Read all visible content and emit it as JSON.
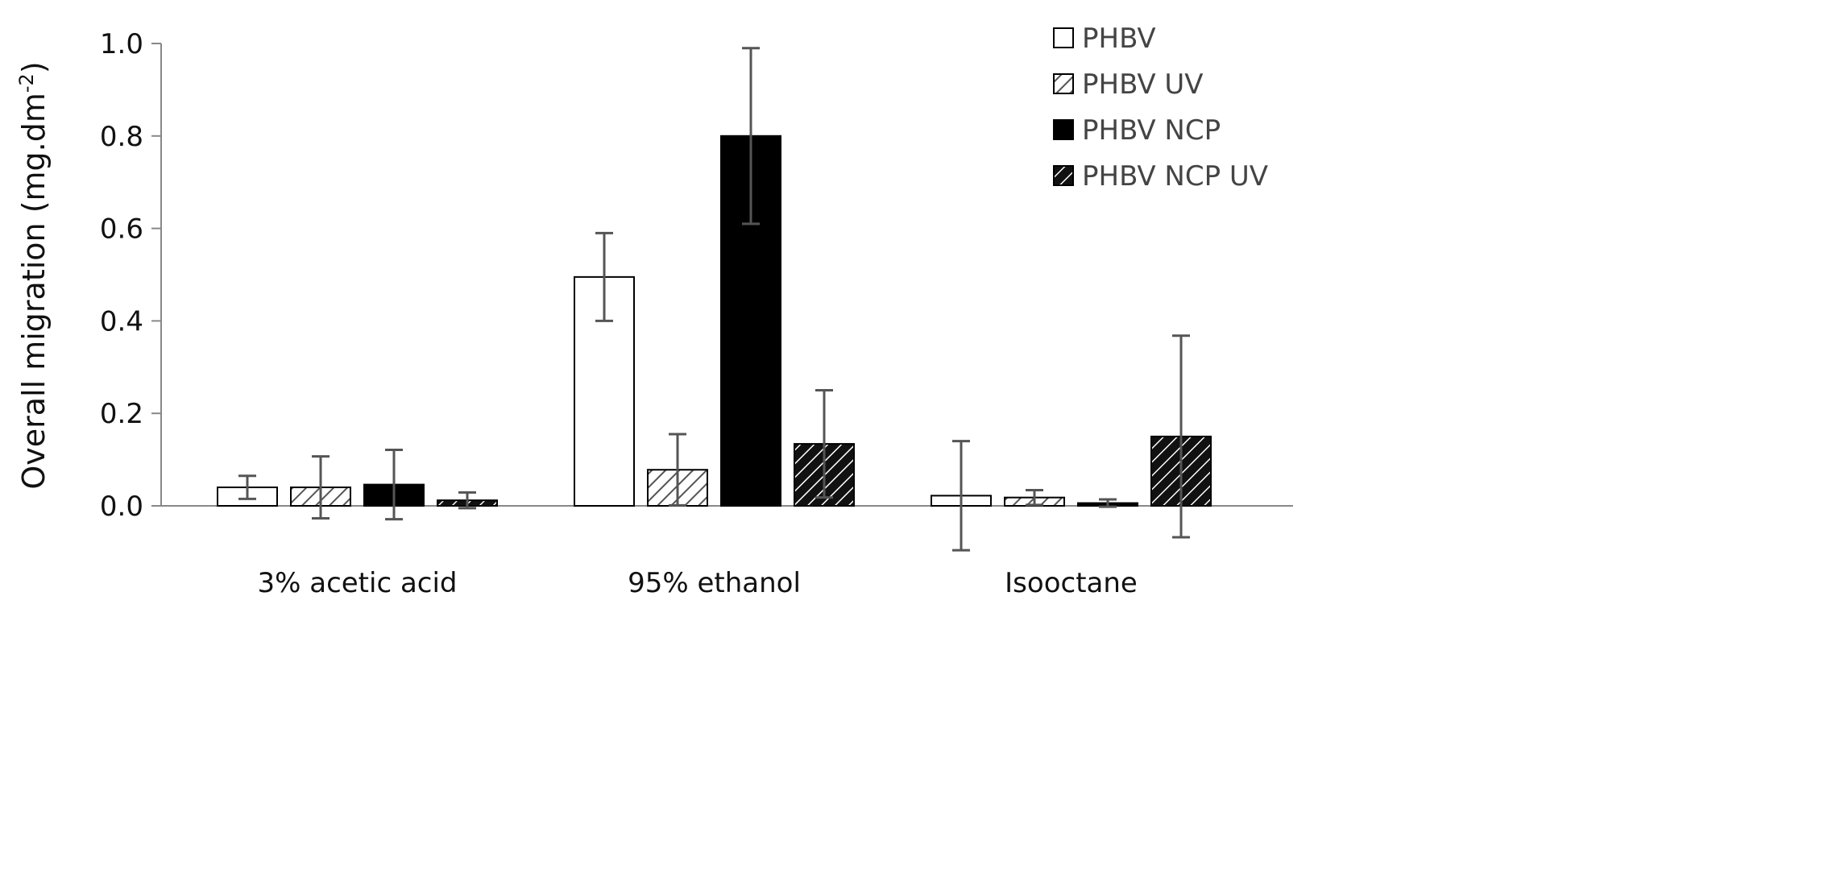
{
  "chart_data": {
    "type": "bar",
    "title": "",
    "xlabel": "",
    "ylabel": "Overall migration (mg.dm",
    "ylabel_sup": "-2",
    "ylabel_close": ")",
    "ylim": [
      0,
      1.0
    ],
    "yticks": [
      "0.0",
      "0.2",
      "0.4",
      "0.6",
      "0.8",
      "1.0"
    ],
    "grid": false,
    "legend_placement": "top-right",
    "categories": [
      "3% acetic acid",
      "95% ethanol",
      "Isooctane"
    ],
    "series": [
      {
        "name": "PHBV",
        "pattern": "open",
        "values": [
          0.04,
          0.495,
          0.022
        ],
        "errors": [
          0.025,
          0.095,
          0.118
        ]
      },
      {
        "name": "PHBV UV",
        "pattern": "light-hatch",
        "values": [
          0.04,
          0.078,
          0.018
        ],
        "errors": [
          0.067,
          0.077,
          0.016
        ]
      },
      {
        "name": "PHBV NCP",
        "pattern": "solid",
        "values": [
          0.046,
          0.8,
          0.006
        ],
        "errors": [
          0.075,
          0.19,
          0.008
        ]
      },
      {
        "name": "PHBV NCP UV",
        "pattern": "dark-hatch",
        "values": [
          0.012,
          0.134,
          0.15
        ],
        "errors": [
          0.017,
          0.116,
          0.218
        ]
      }
    ]
  }
}
